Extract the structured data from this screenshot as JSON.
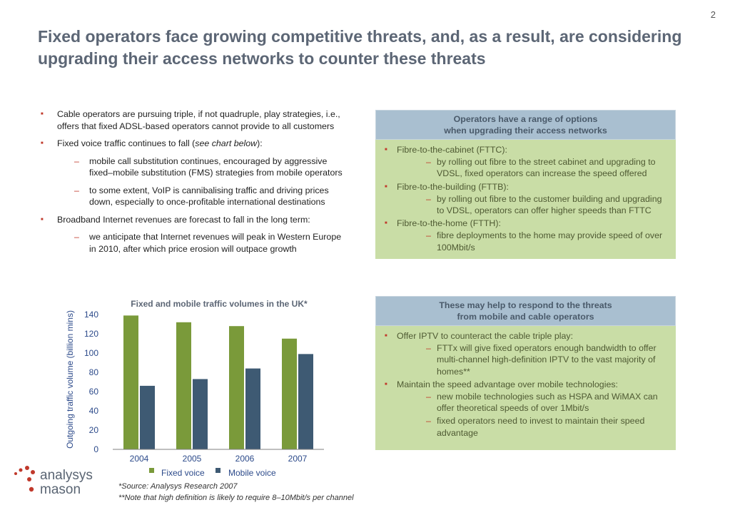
{
  "page_number": "2",
  "title": "Fixed operators face growing competitive threats, and, as a result, are considering upgrading their access networks to counter these threats",
  "left": {
    "b1": "Cable operators are pursuing triple, if not quadruple, play strategies, i.e., offers that fixed ADSL-based operators cannot provide to all customers",
    "b2_pre": "Fixed voice traffic continues to fall (",
    "b2_italic": "see chart below",
    "b2_post": "):",
    "b2_s1": "mobile call substitution continues, encouraged by aggressive fixed–mobile substitution (FMS) strategies from mobile operators",
    "b2_s2": "to some extent, VoIP is cannibalising traffic and driving prices down, especially to once-profitable international destinations",
    "b3": "Broadband Internet revenues are forecast to fall in the long term:",
    "b3_s1": "we anticipate that Internet revenues will peak in Western Europe in 2010, after which price erosion will outpace growth"
  },
  "box1": {
    "header_line1": "Operators have a range of options",
    "header_line2": "when upgrading their access networks",
    "b1": "Fibre-to-the-cabinet (FTTC):",
    "b1_s1": "by rolling out fibre to the street cabinet and upgrading to VDSL, fixed operators can increase the speed offered",
    "b2": "Fibre-to-the-building (FTTB):",
    "b2_s1": "by rolling out fibre to the customer building and upgrading to VDSL, operators can offer higher speeds than FTTC",
    "b3": "Fibre-to-the-home (FTTH):",
    "b3_s1": "fibre deployments to the home may provide speed of over 100Mbit/s"
  },
  "box2": {
    "header_line1": "These may help to respond to the threats",
    "header_line2": "from mobile and cable operators",
    "b1": "Offer IPTV to counteract the cable triple play:",
    "b1_s1": "FTTx will give fixed operators enough bandwidth to offer multi-channel high-definition IPTV to the vast majority of homes**",
    "b2": "Maintain the speed advantage over mobile technologies:",
    "b2_s1": "new mobile technologies such as HSPA and WiMAX can offer theoretical speeds of over 1Mbit/s",
    "b2_s2": "fixed operators need to invest to maintain their speed advantage"
  },
  "chart_data": {
    "type": "bar",
    "title": "Fixed and mobile traffic volumes in the UK*",
    "ylabel": "Outgoing traffic volume (billion mins)",
    "xlabel": "",
    "categories": [
      "2004",
      "2005",
      "2006",
      "2007"
    ],
    "ylim": [
      0,
      140
    ],
    "yticks": [
      "0",
      "20",
      "40",
      "60",
      "80",
      "100",
      "120",
      "140"
    ],
    "series": [
      {
        "name": "Fixed voice",
        "color": "#7a9a3a",
        "values": [
          139,
          132,
          128,
          115
        ]
      },
      {
        "name": "Mobile voice",
        "color": "#3e5a73",
        "values": [
          66,
          73,
          84,
          99
        ]
      }
    ],
    "grid": false,
    "legend": "bottom"
  },
  "notes": {
    "source": "*Source: Analysys Research 2007",
    "note": "**Note that high definition is likely to require 8–10Mbit/s per channel"
  },
  "logo": {
    "line1": "analysys",
    "line2": "mason",
    "color": "#5a6573",
    "dot_color": "#c0392b"
  }
}
